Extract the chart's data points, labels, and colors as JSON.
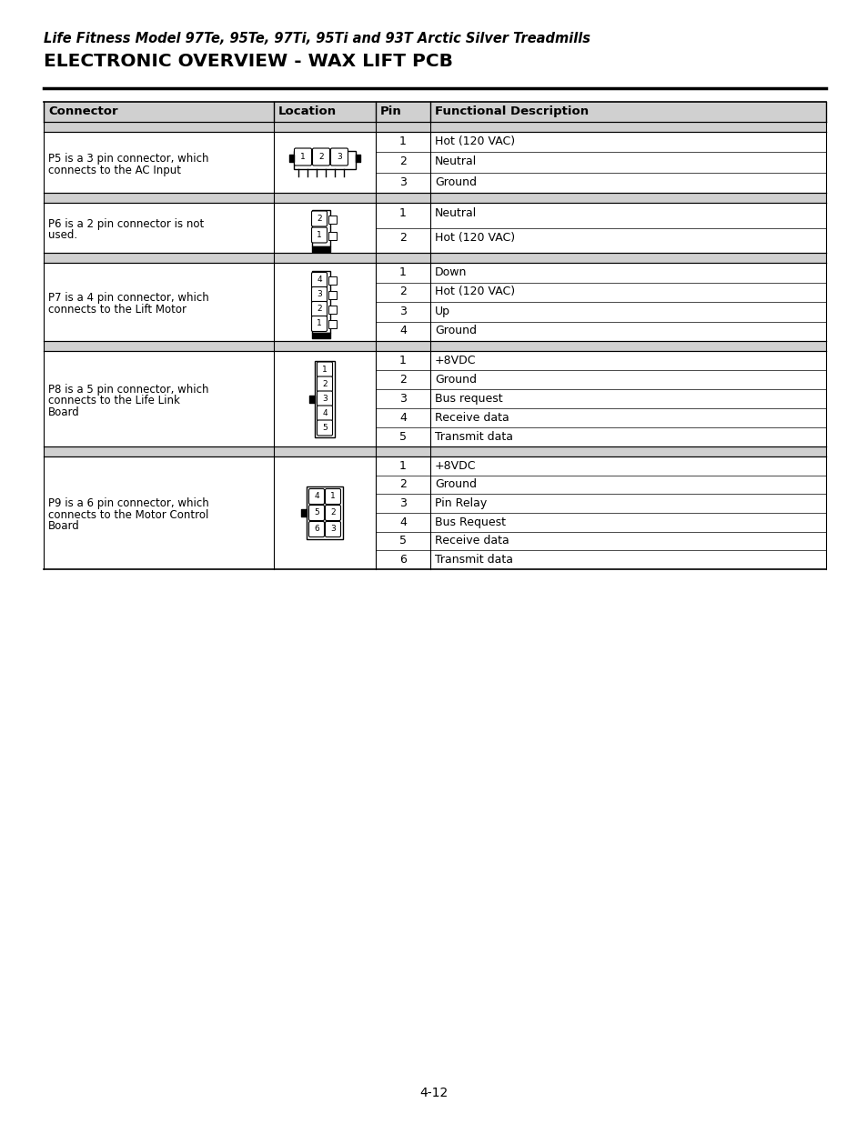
{
  "title_italic": "Life Fitness Model 97Te, 95Te, 97Ti, 95Ti and 93T Arctic Silver Treadmills",
  "title_bold": "ELECTRONIC OVERVIEW - WAX LIFT PCB",
  "page_number": "4-12",
  "bg_color": "#ffffff",
  "header_bg": "#d0d0d0",
  "separator_bg": "#d0d0d0",
  "col_headers": [
    "Connector",
    "Location",
    "Pin",
    "Functional Description"
  ],
  "sections": [
    {
      "connector_text": "P5 is a 3 pin connector, which connects to the AC Input",
      "pins": [
        {
          "pin": "1",
          "desc": "Hot (120 VAC)"
        },
        {
          "pin": "2",
          "desc": "Neutral"
        },
        {
          "pin": "3",
          "desc": "Ground"
        }
      ]
    },
    {
      "connector_text": "P6 is a 2 pin connector is not used.",
      "pins": [
        {
          "pin": "1",
          "desc": "Neutral"
        },
        {
          "pin": "2",
          "desc": "Hot (120 VAC)"
        }
      ]
    },
    {
      "connector_text": "P7 is a 4 pin connector, which connects to the Lift Motor",
      "pins": [
        {
          "pin": "1",
          "desc": "Down"
        },
        {
          "pin": "2",
          "desc": "Hot (120 VAC)"
        },
        {
          "pin": "3",
          "desc": "Up"
        },
        {
          "pin": "4",
          "desc": "Ground"
        }
      ]
    },
    {
      "connector_text": "P8 is a 5 pin connector, which connects to the Life Link Board",
      "pins": [
        {
          "pin": "1",
          "desc": "+8VDC"
        },
        {
          "pin": "2",
          "desc": "Ground"
        },
        {
          "pin": "3",
          "desc": "Bus request"
        },
        {
          "pin": "4",
          "desc": "Receive data"
        },
        {
          "pin": "5",
          "desc": "Transmit data"
        }
      ]
    },
    {
      "connector_text": "P9 is a 6 pin connector, which connects to the Motor Control Board",
      "pins": [
        {
          "pin": "1",
          "desc": "+8VDC"
        },
        {
          "pin": "2",
          "desc": "Ground"
        },
        {
          "pin": "3",
          "desc": "Pin Relay"
        },
        {
          "pin": "4",
          "desc": "Bus Request"
        },
        {
          "pin": "5",
          "desc": "Receive data"
        },
        {
          "pin": "6",
          "desc": "Transmit data"
        }
      ]
    }
  ]
}
